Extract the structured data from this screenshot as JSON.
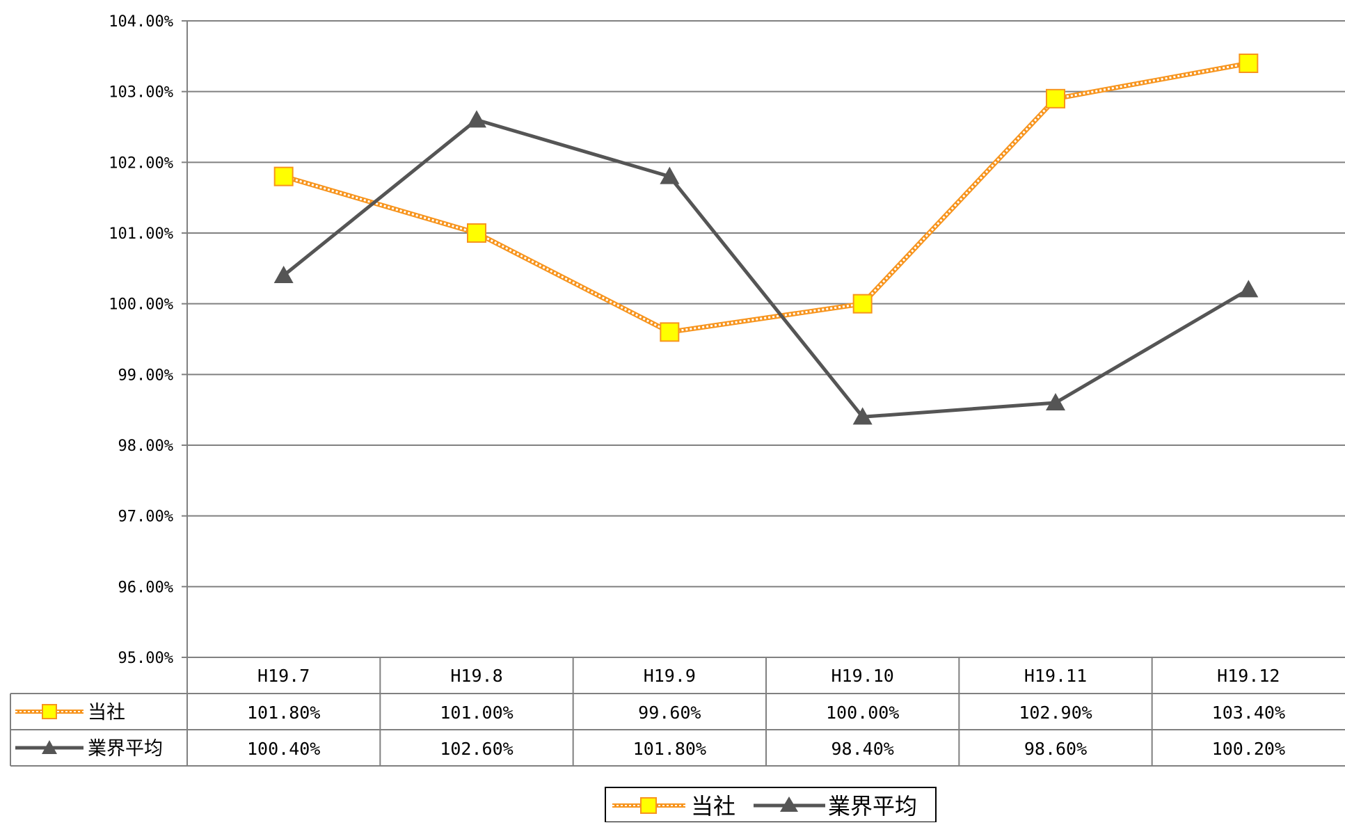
{
  "chart_data": {
    "type": "line",
    "categories": [
      "H19.7",
      "H19.8",
      "H19.9",
      "H19.10",
      "H19.11",
      "H19.12"
    ],
    "series": [
      {
        "name": "当社",
        "values": [
          101.8,
          101.0,
          99.6,
          100.0,
          102.9,
          103.4
        ],
        "labels": [
          "101.80%",
          "101.00%",
          "99.60%",
          "100.00%",
          "102.90%",
          "103.40%"
        ],
        "color": "#f7941d",
        "marker": "square",
        "marker_fill": "#ffff00",
        "line_style": "dotted-double"
      },
      {
        "name": "業界平均",
        "values": [
          100.4,
          102.6,
          101.8,
          98.4,
          98.6,
          100.2
        ],
        "labels": [
          "100.40%",
          "102.60%",
          "101.80%",
          "98.40%",
          "98.60%",
          "100.20%"
        ],
        "color": "#555555",
        "marker": "triangle",
        "line_style": "solid"
      }
    ],
    "y_ticks": [
      "95.00%",
      "96.00%",
      "97.00%",
      "98.00%",
      "99.00%",
      "100.00%",
      "101.00%",
      "102.00%",
      "103.00%",
      "104.00%"
    ],
    "ylim": [
      95,
      104
    ],
    "grid": true,
    "legend_position": "bottom",
    "data_table": true
  }
}
